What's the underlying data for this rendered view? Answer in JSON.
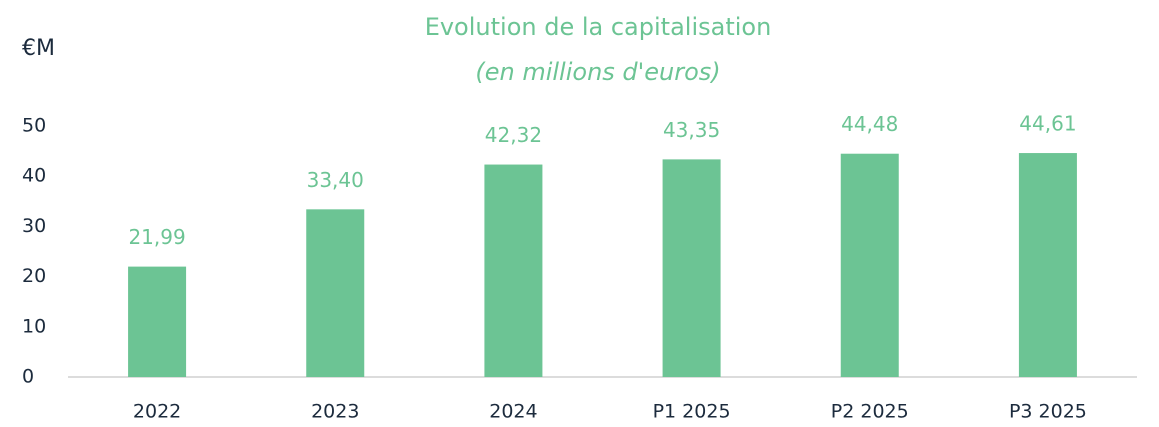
{
  "chart_data": {
    "type": "bar",
    "title": "Evolution de la capitalisation",
    "subtitle": "(en millions d'euros)",
    "y_label": "€M",
    "categories": [
      "2022",
      "2023",
      "2024",
      "P1 2025",
      "P2 2025",
      "P3 2025"
    ],
    "values": [
      21.99,
      33.4,
      42.32,
      43.35,
      44.48,
      44.61
    ],
    "value_labels": [
      "21,99",
      "33,40",
      "42,32",
      "43,35",
      "44,48",
      "44,61"
    ],
    "color": "#6cc494",
    "ylim": [
      0,
      50
    ],
    "yticks": [
      0,
      10,
      20,
      30,
      40,
      50
    ],
    "grid": false
  }
}
